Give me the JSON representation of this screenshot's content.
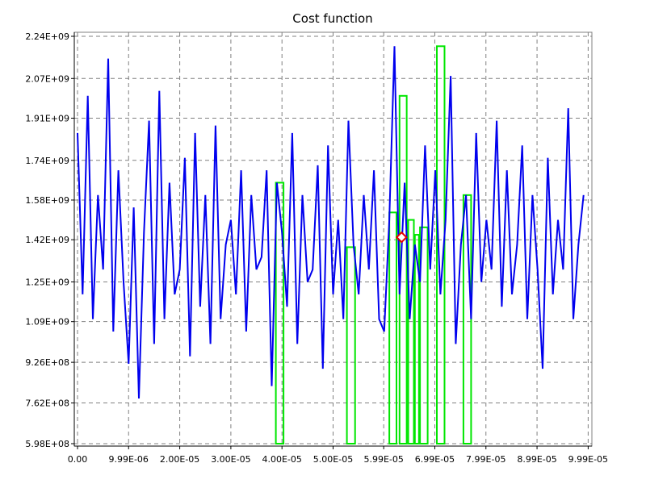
{
  "chart_data": {
    "type": "line",
    "title": "Cost function",
    "xlabel": "",
    "ylabel": "",
    "xlim": [
      0,
      0.0001
    ],
    "ylim": [
      598000000.0,
      2240000000.0
    ],
    "x_tick_labels": [
      "0.00",
      "9.99E-06",
      "2.00E-05",
      "3.00E-05",
      "4.00E-05",
      "5.00E-05",
      "5.99E-05",
      "6.99E-05",
      "7.99E-05",
      "8.99E-05",
      "9.99E-05"
    ],
    "x_ticks": [
      0,
      9.99e-06,
      2e-05,
      3e-05,
      4e-05,
      5e-05,
      5.99e-05,
      6.99e-05,
      7.99e-05,
      8.99e-05,
      9.99e-05
    ],
    "y_tick_labels": [
      "5.98E+08",
      "7.62E+08",
      "9.26E+08",
      "1.09E+09",
      "1.25E+09",
      "1.42E+09",
      "1.58E+09",
      "1.74E+09",
      "1.91E+09",
      "2.07E+09",
      "2.24E+09"
    ],
    "y_ticks": [
      598000000.0,
      762000000.0,
      926000000.0,
      1090000000.0,
      1250000000.0,
      1420000000.0,
      1580000000.0,
      1740000000.0,
      1910000000.0,
      2070000000.0,
      2240000000.0
    ],
    "grid": true,
    "series": [
      {
        "color": "#0000ee",
        "style": "line",
        "x": [
          0,
          1e-06,
          2e-06,
          3e-06,
          4e-06,
          5e-06,
          6e-06,
          7e-06,
          8e-06,
          9e-06,
          1e-05,
          1.1e-05,
          1.2e-05,
          1.3e-05,
          1.4e-05,
          1.5e-05,
          1.6e-05,
          1.7e-05,
          1.8e-05,
          1.9e-05,
          2e-05,
          2.1e-05,
          2.2e-05,
          2.3e-05,
          2.4e-05,
          2.5e-05,
          2.6e-05,
          2.7e-05,
          2.8e-05,
          2.9e-05,
          3e-05,
          3.1e-05,
          3.2e-05,
          3.3e-05,
          3.4e-05,
          3.5e-05,
          3.6e-05,
          3.7e-05,
          3.8e-05,
          3.9e-05,
          4e-05,
          4.1e-05,
          4.2e-05,
          4.3e-05,
          4.4e-05,
          4.5e-05,
          4.6e-05,
          4.7e-05,
          4.8e-05,
          4.9e-05,
          5e-05,
          5.1e-05,
          5.2e-05,
          5.3e-05,
          5.4e-05,
          5.5e-05,
          5.6e-05,
          5.7e-05,
          5.8e-05,
          5.9e-05,
          6e-05,
          6.1e-05,
          6.2e-05,
          6.3e-05,
          6.4e-05,
          6.5e-05,
          6.6e-05,
          6.7e-05,
          6.8e-05,
          6.9e-05,
          7e-05,
          7.1e-05,
          7.2e-05,
          7.3e-05,
          7.4e-05,
          7.5e-05,
          7.6e-05,
          7.7e-05,
          7.8e-05,
          7.9e-05,
          8e-05,
          8.1e-05,
          8.2e-05,
          8.3e-05,
          8.4e-05,
          8.5e-05,
          8.6e-05,
          8.7e-05,
          8.8e-05,
          8.9e-05,
          9e-05,
          9.1e-05,
          9.2e-05,
          9.3e-05,
          9.4e-05,
          9.5e-05,
          9.6e-05,
          9.7e-05,
          9.8e-05,
          9.9e-05
        ],
        "y": [
          1850000000.0,
          1200000000.0,
          2000000000.0,
          1100000000.0,
          1600000000.0,
          1300000000.0,
          2150000000.0,
          1050000000.0,
          1700000000.0,
          1250000000.0,
          920000000.0,
          1550000000.0,
          780000000.0,
          1450000000.0,
          1900000000.0,
          1000000000.0,
          2020000000.0,
          1100000000.0,
          1650000000.0,
          1200000000.0,
          1300000000.0,
          1750000000.0,
          950000000.0,
          1850000000.0,
          1150000000.0,
          1600000000.0,
          1000000000.0,
          1880000000.0,
          1100000000.0,
          1400000000.0,
          1500000000.0,
          1200000000.0,
          1700000000.0,
          1050000000.0,
          1600000000.0,
          1300000000.0,
          1350000000.0,
          1700000000.0,
          830000000.0,
          1650000000.0,
          1450000000.0,
          1150000000.0,
          1850000000.0,
          1000000000.0,
          1600000000.0,
          1250000000.0,
          1300000000.0,
          1720000000.0,
          900000000.0,
          1800000000.0,
          1200000000.0,
          1500000000.0,
          1100000000.0,
          1900000000.0,
          1400000000.0,
          1200000000.0,
          1600000000.0,
          1300000000.0,
          1700000000.0,
          1100000000.0,
          1050000000.0,
          1500000000.0,
          2200000000.0,
          1200000000.0,
          1650000000.0,
          1100000000.0,
          1400000000.0,
          1250000000.0,
          1800000000.0,
          1300000000.0,
          1700000000.0,
          1200000000.0,
          1500000000.0,
          2080000000.0,
          1000000000.0,
          1400000000.0,
          1600000000.0,
          1100000000.0,
          1850000000.0,
          1250000000.0,
          1500000000.0,
          1300000000.0,
          1900000000.0,
          1150000000.0,
          1700000000.0,
          1200000000.0,
          1400000000.0,
          1800000000.0,
          1100000000.0,
          1600000000.0,
          1300000000.0,
          900000000.0,
          1750000000.0,
          1200000000.0,
          1500000000.0,
          1300000000.0,
          1950000000.0,
          1100000000.0,
          1400000000.0,
          1600000000.0
        ]
      },
      {
        "color": "#00e600",
        "style": "bars-outline",
        "bars": [
          {
            "x0": 3.88e-05,
            "x1": 4.03e-05,
            "top": 1650000000.0
          },
          {
            "x0": 5.27e-05,
            "x1": 5.43e-05,
            "top": 1390000000.0
          },
          {
            "x0": 6.1e-05,
            "x1": 6.24e-05,
            "top": 1530000000.0
          },
          {
            "x0": 6.3e-05,
            "x1": 6.44e-05,
            "top": 2000000000.0
          },
          {
            "x0": 6.47e-05,
            "x1": 6.58e-05,
            "top": 1500000000.0
          },
          {
            "x0": 6.6e-05,
            "x1": 6.68e-05,
            "top": 1440000000.0
          },
          {
            "x0": 6.7e-05,
            "x1": 6.85e-05,
            "top": 1470000000.0
          },
          {
            "x0": 7.03e-05,
            "x1": 7.18e-05,
            "top": 2200000000.0
          },
          {
            "x0": 7.55e-05,
            "x1": 7.7e-05,
            "top": 1600000000.0
          }
        ]
      },
      {
        "color": "#e60000",
        "style": "marker",
        "marker": "diamond",
        "x": [
          6.34e-05
        ],
        "y": [
          1430000000.0
        ]
      }
    ]
  }
}
